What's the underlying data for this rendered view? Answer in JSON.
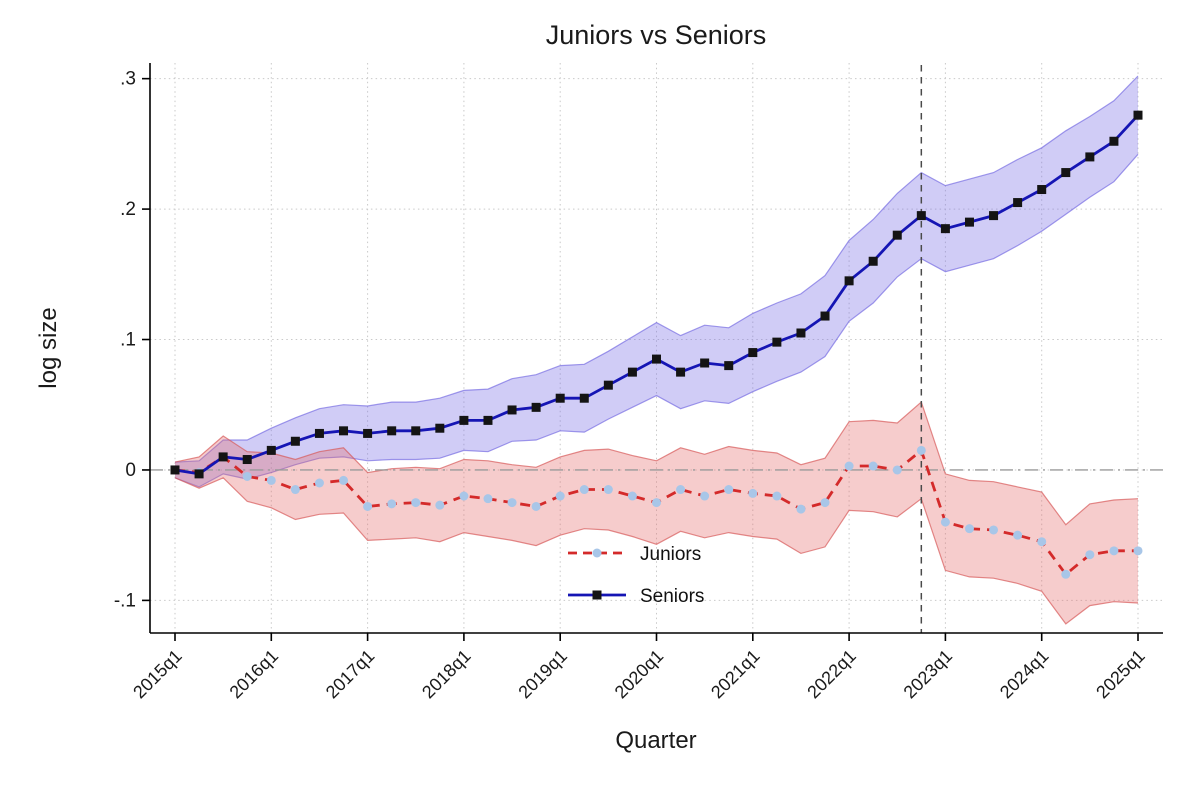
{
  "chart_data": {
    "type": "line",
    "title": "Juniors vs Seniors",
    "xlabel": "Quarter",
    "ylabel": "log size",
    "background": "#ffffff",
    "grid": "dotted",
    "legend_position": "inside-bottom-center",
    "ylim": [
      -0.125,
      0.312
    ],
    "x": [
      "2015q1",
      "2015q2",
      "2015q3",
      "2015q4",
      "2016q1",
      "2016q2",
      "2016q3",
      "2016q4",
      "2017q1",
      "2017q2",
      "2017q3",
      "2017q4",
      "2018q1",
      "2018q2",
      "2018q3",
      "2018q4",
      "2019q1",
      "2019q2",
      "2019q3",
      "2019q4",
      "2020q1",
      "2020q2",
      "2020q3",
      "2020q4",
      "2021q1",
      "2021q2",
      "2021q3",
      "2021q4",
      "2022q1",
      "2022q2",
      "2022q3",
      "2022q4",
      "2023q1",
      "2023q2",
      "2023q3",
      "2023q4",
      "2024q1",
      "2024q2",
      "2024q3",
      "2024q4",
      "2025q1"
    ],
    "x_tick_labels": [
      "2015q1",
      "2016q1",
      "2017q1",
      "2018q1",
      "2019q1",
      "2020q1",
      "2021q1",
      "2022q1",
      "2023q1",
      "2024q1",
      "2025q1"
    ],
    "x_tick_indices": [
      0,
      4,
      8,
      12,
      16,
      20,
      24,
      28,
      32,
      36,
      40
    ],
    "y_ticks": {
      "labels": [
        ".3",
        ".2",
        ".1",
        "0",
        "-.1"
      ],
      "values": [
        0.3,
        0.2,
        0.1,
        0,
        -0.1
      ]
    },
    "reference_lines": {
      "horizontal_zero": {
        "value": 0,
        "style": "dash-dot",
        "color": "#9a9a9a"
      },
      "vertical_event": {
        "x": "2022q4",
        "index": 31,
        "style": "dashed",
        "color": "#4a4a4a"
      }
    },
    "axis_color": "#000000",
    "grid_color": "#c9c9c9",
    "series": [
      {
        "name": "Juniors",
        "color": "#d42a2a",
        "line_style": "dashed",
        "marker": "circle",
        "marker_color": "#a8c6e8",
        "band_fill": "rgba(230,110,110,0.35)",
        "band_edge": "rgba(215,90,90,0.7)",
        "values": [
          0.0,
          -0.002,
          0.01,
          -0.005,
          -0.008,
          -0.015,
          -0.01,
          -0.008,
          -0.028,
          -0.026,
          -0.025,
          -0.027,
          -0.02,
          -0.022,
          -0.025,
          -0.028,
          -0.02,
          -0.015,
          -0.015,
          -0.02,
          -0.025,
          -0.015,
          -0.02,
          -0.015,
          -0.018,
          -0.02,
          -0.03,
          -0.025,
          0.003,
          0.003,
          0.0,
          0.015,
          -0.04,
          -0.045,
          -0.046,
          -0.05,
          -0.055,
          -0.08,
          -0.065,
          -0.062,
          -0.062
        ],
        "ci_halfwidth": [
          0.006,
          0.012,
          0.016,
          0.019,
          0.021,
          0.023,
          0.024,
          0.025,
          0.026,
          0.027,
          0.027,
          0.028,
          0.028,
          0.029,
          0.029,
          0.03,
          0.03,
          0.03,
          0.031,
          0.031,
          0.032,
          0.032,
          0.032,
          0.033,
          0.033,
          0.033,
          0.034,
          0.034,
          0.034,
          0.035,
          0.036,
          0.037,
          0.037,
          0.037,
          0.037,
          0.037,
          0.038,
          0.038,
          0.039,
          0.039,
          0.04
        ]
      },
      {
        "name": "Seniors",
        "color": "#1515b4",
        "line_style": "solid",
        "marker": "square",
        "marker_color": "#141414",
        "band_fill": "rgba(120,110,230,0.35)",
        "band_edge": "rgba(110,100,225,0.65)",
        "values": [
          0.0,
          -0.003,
          0.01,
          0.008,
          0.015,
          0.022,
          0.028,
          0.03,
          0.028,
          0.03,
          0.03,
          0.032,
          0.038,
          0.038,
          0.046,
          0.048,
          0.055,
          0.055,
          0.065,
          0.075,
          0.085,
          0.075,
          0.082,
          0.08,
          0.09,
          0.098,
          0.105,
          0.118,
          0.145,
          0.16,
          0.18,
          0.195,
          0.185,
          0.19,
          0.195,
          0.205,
          0.215,
          0.228,
          0.24,
          0.252,
          0.272
        ],
        "ci_halfwidth": [
          0.006,
          0.01,
          0.013,
          0.015,
          0.017,
          0.018,
          0.019,
          0.02,
          0.021,
          0.022,
          0.022,
          0.023,
          0.023,
          0.024,
          0.024,
          0.025,
          0.025,
          0.026,
          0.026,
          0.027,
          0.028,
          0.028,
          0.029,
          0.029,
          0.03,
          0.03,
          0.03,
          0.031,
          0.031,
          0.032,
          0.032,
          0.033,
          0.033,
          0.033,
          0.033,
          0.033,
          0.032,
          0.032,
          0.031,
          0.031,
          0.03
        ]
      }
    ]
  }
}
